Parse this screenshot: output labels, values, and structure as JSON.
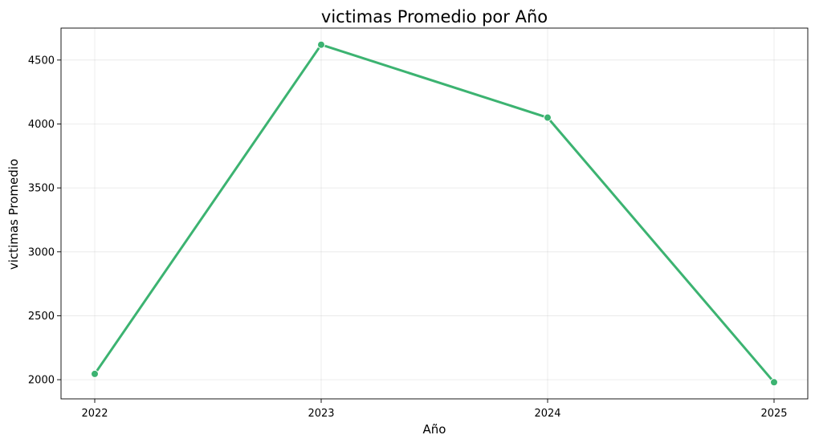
{
  "chart_data": {
    "type": "line",
    "title": "victimas Promedio por Año",
    "xlabel": "Año",
    "ylabel": "victimas  Promedio",
    "x": [
      "2022",
      "2023",
      "2024",
      "2025"
    ],
    "series": [
      {
        "values": [
          2045,
          4620,
          4050,
          1980
        ],
        "color": "#3cb371",
        "marker": "circle"
      }
    ],
    "yticks": [
      2000,
      2500,
      3000,
      3500,
      4000,
      4500
    ],
    "ylim": [
      1850,
      4750
    ],
    "grid": true
  }
}
